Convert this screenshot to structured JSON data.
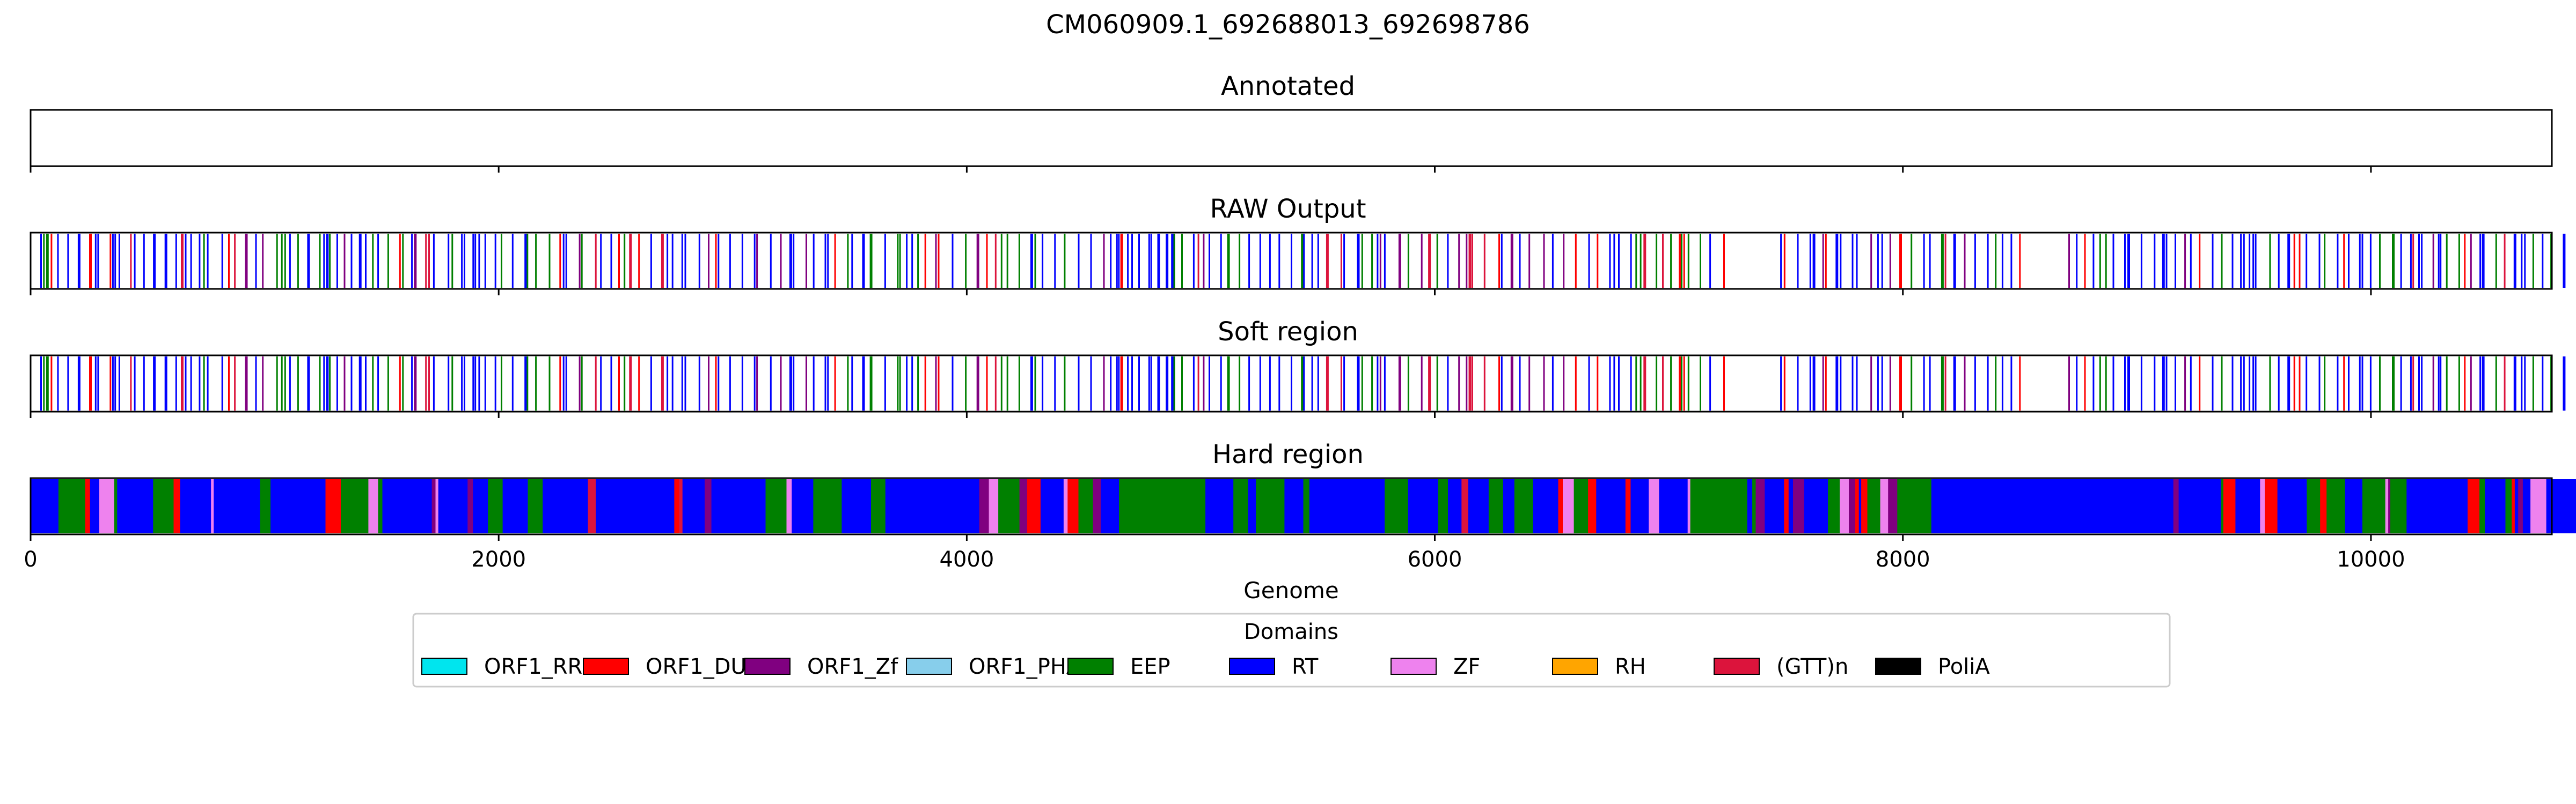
{
  "chart_data": {
    "type": "bar",
    "title": "CM060909.1_692688013_692698786",
    "xlabel": "Genome",
    "xlim": [
      0,
      10773
    ],
    "xticks": [
      0,
      2000,
      4000,
      6000,
      8000,
      10000
    ],
    "panels": [
      {
        "title": "Annotated",
        "mode": "empty"
      },
      {
        "title": "RAW Output",
        "mode": "sparse",
        "seed": 11
      },
      {
        "title": "Soft region",
        "mode": "sparse",
        "seed": 11
      },
      {
        "title": "Hard region",
        "mode": "dense",
        "seed": 29
      }
    ],
    "legend": {
      "title": "Domains",
      "placement": "bottom-center",
      "entries": [
        {
          "label": "ORF1_RRM",
          "color": "#00e5ee"
        },
        {
          "label": "ORF1_DUF",
          "color": "#ff0000"
        },
        {
          "label": "ORF1_Zf",
          "color": "#800080"
        },
        {
          "label": "ORF1_PHA",
          "color": "#87ceeb"
        },
        {
          "label": "EEP",
          "color": "#008000"
        },
        {
          "label": "RT",
          "color": "#0000ff"
        },
        {
          "label": "ZF",
          "color": "#ee82ee"
        },
        {
          "label": "RH",
          "color": "#ffa500"
        },
        {
          "label": "(GTT)n",
          "color": "#dc143c"
        },
        {
          "label": "PoliA",
          "color": "#000000"
        }
      ]
    }
  }
}
